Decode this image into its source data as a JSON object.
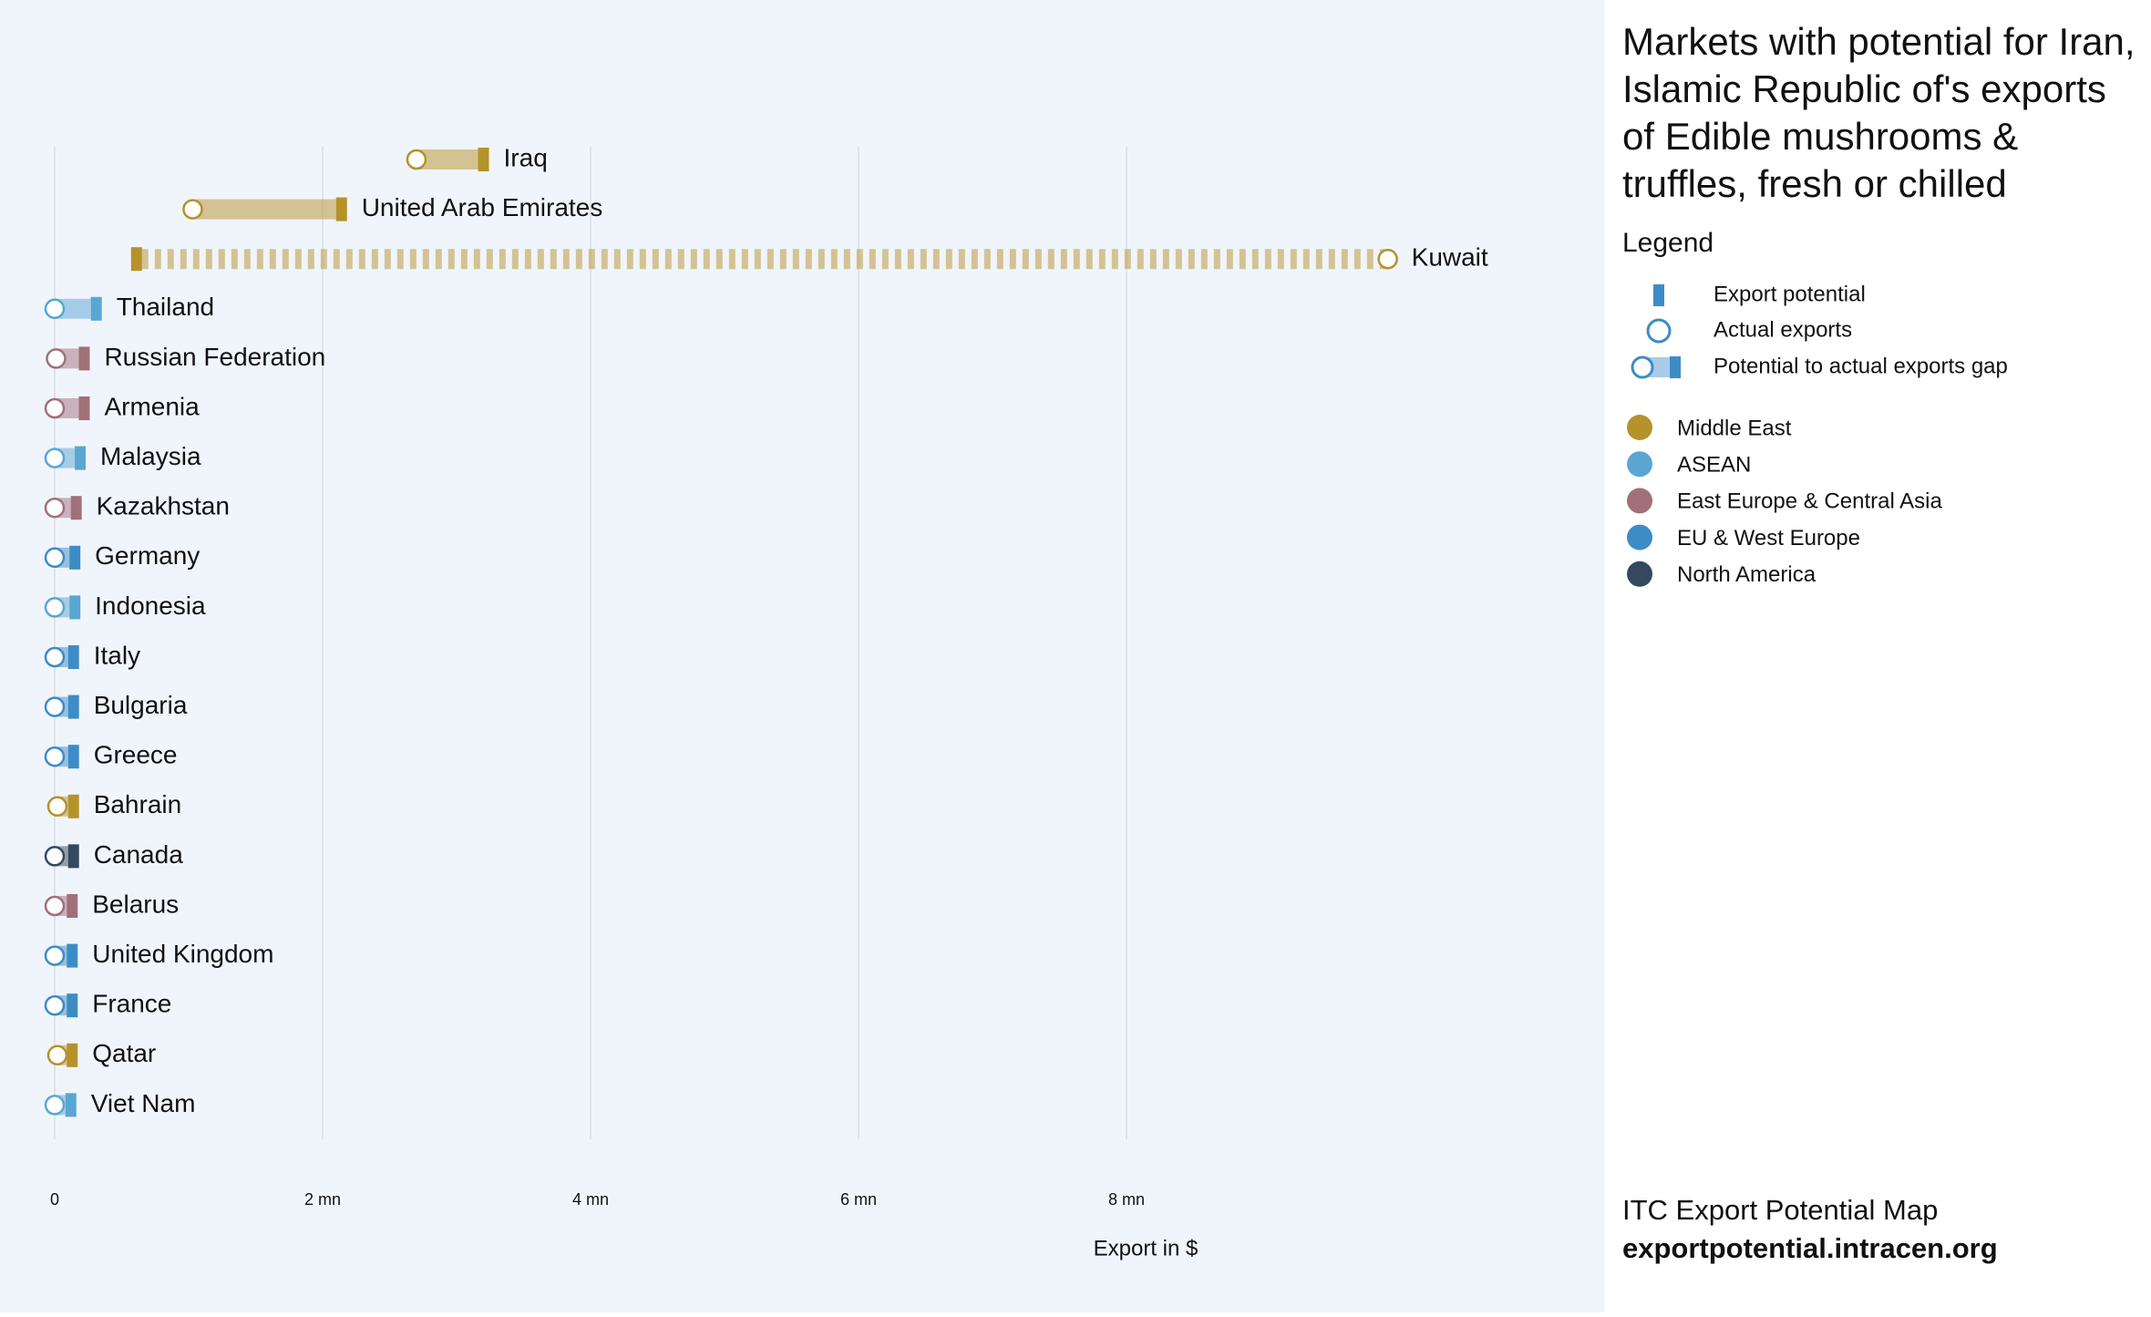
{
  "chart_data": {
    "type": "dumbbell",
    "title": "Markets with potential for Iran, Islamic Republic of's exports of Edible mushrooms & truffles, fresh or chilled",
    "x_label": "Export in $",
    "categories": [
      "Iraq",
      "United Arab Emirates",
      "Kuwait",
      "Thailand",
      "Russian Federation",
      "Armenia",
      "Malaysia",
      "Kazakhstan",
      "Germany",
      "Indonesia",
      "Italy",
      "Bulgaria",
      "Greece",
      "Bahrain",
      "Canada",
      "Belarus",
      "United Kingdom",
      "France",
      "Qatar",
      "Viet Nam"
    ],
    "region": [
      "Middle East",
      "Middle East",
      "Middle East",
      "ASEAN",
      "East Europe & Central Asia",
      "East Europe & Central Asia",
      "ASEAN",
      "East Europe & Central Asia",
      "EU & West Europe",
      "ASEAN",
      "EU & West Europe",
      "EU & West Europe",
      "EU & West Europe",
      "Middle East",
      "North America",
      "East Europe & Central Asia",
      "EU & West Europe",
      "EU & West Europe",
      "Middle East",
      "ASEAN"
    ],
    "potential": [
      3160000,
      2100000,
      570000,
      270000,
      180000,
      180000,
      150000,
      120000,
      110000,
      110000,
      100000,
      100000,
      100000,
      100000,
      100000,
      90000,
      90000,
      90000,
      90000,
      80000
    ],
    "actual": [
      2700000,
      1030000,
      9950000,
      0,
      10000,
      0,
      0,
      0,
      0,
      0,
      0,
      0,
      0,
      20000,
      0,
      0,
      0,
      0,
      20000,
      0
    ],
    "xlim": [
      0,
      11000000
    ],
    "xticks": [
      0,
      {
        "value": 2000000,
        "label": "2 mn"
      },
      {
        "value": 4000000,
        "label": "4 mn"
      },
      {
        "value": 6000000,
        "label": "6 mn"
      },
      {
        "value": 8000000,
        "label": "8 mn"
      }
    ],
    "grid": true,
    "legend_title": "Legend",
    "legend_items": [
      "Export potential",
      "Actual exports",
      "Potential to actual exports gap"
    ],
    "regions": [
      {
        "name": "Middle East",
        "color": "#b5922a"
      },
      {
        "name": "ASEAN",
        "color": "#5aa6d2"
      },
      {
        "name": "East Europe & Central Asia",
        "color": "#a2707a"
      },
      {
        "name": "EU & West Europe",
        "color": "#3d8cc6"
      },
      {
        "name": "North America",
        "color": "#34495e"
      }
    ]
  },
  "footer": {
    "source": "ITC Export Potential Map",
    "url": "exportpotential.intracen.org"
  }
}
